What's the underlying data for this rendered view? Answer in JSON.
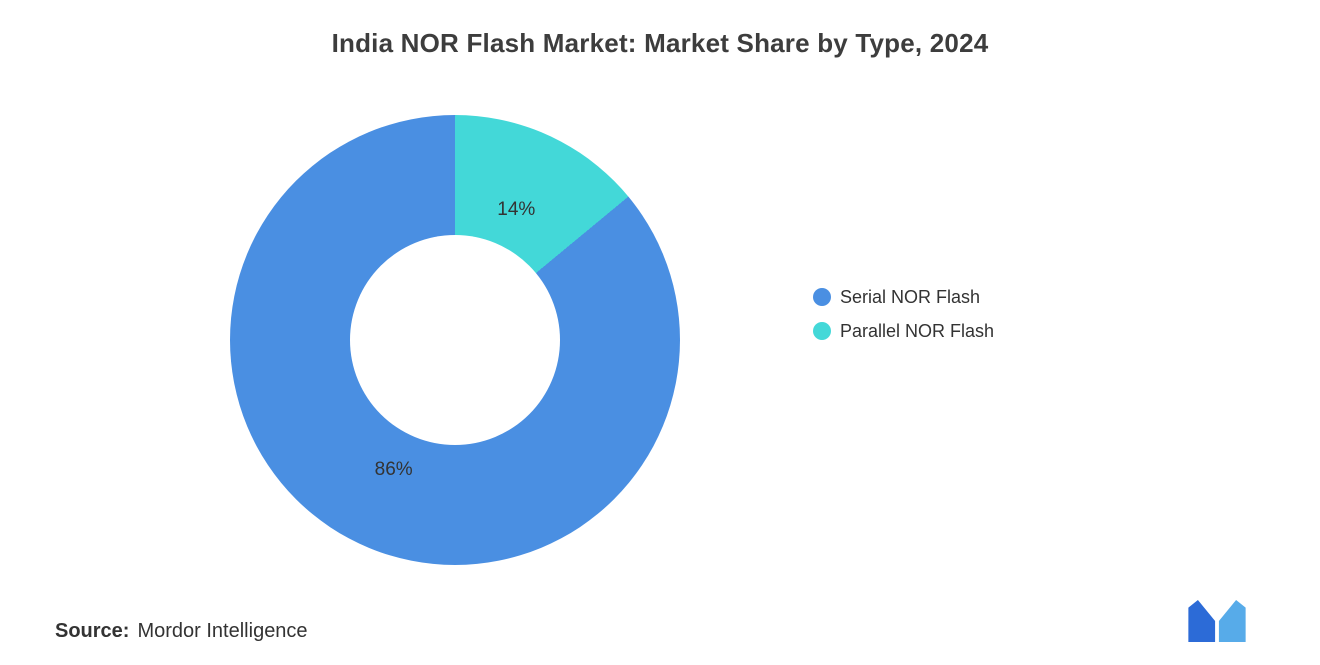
{
  "title": "India NOR Flash Market: Market Share by Type, 2024",
  "source": {
    "label": "Source:",
    "value": "Mordor Intelligence"
  },
  "legend": [
    {
      "label": "Serial NOR Flash",
      "color": "#4A8FE2"
    },
    {
      "label": "Parallel NOR Flash",
      "color": "#43D8D8"
    }
  ],
  "logo": {
    "name": "mordor-intelligence-logo",
    "color_dark": "#2C6BD7",
    "color_light": "#57ABE9"
  },
  "chart_data": {
    "type": "pie",
    "donut": true,
    "title": "India NOR Flash Market: Market Share by Type, 2024",
    "categories": [
      "Serial NOR Flash",
      "Parallel NOR Flash"
    ],
    "values": [
      86,
      14
    ],
    "labels": [
      "86%",
      "14%"
    ],
    "colors": [
      "#4A8FE2",
      "#43D8D8"
    ],
    "draw_order": [
      1,
      0
    ],
    "start_angle_deg": 0,
    "direction": "clockwise",
    "inner_radius_ratio": 0.47,
    "label_radius_ratio": 0.64,
    "legend_position": "right",
    "grid": false
  }
}
